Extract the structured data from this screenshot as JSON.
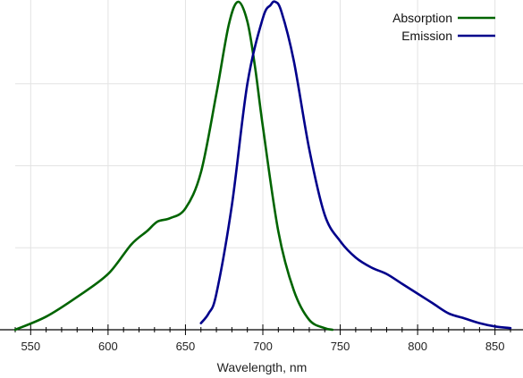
{
  "chart_data": {
    "type": "line",
    "xlabel": "Wavelength, nm",
    "xlim": [
      540,
      860
    ],
    "ylim": [
      0,
      1
    ],
    "x_ticks": [
      550,
      600,
      650,
      700,
      750,
      800,
      850
    ],
    "x_tick_labels": [
      "550",
      "600",
      "650",
      "700",
      "750",
      "800",
      "850"
    ],
    "grid": true,
    "legend_position": "top-right",
    "series": [
      {
        "name": "Absorption",
        "color": "#006400",
        "x": [
          540,
          560,
          580,
          600,
          615,
          625,
          632,
          640,
          650,
          660,
          670,
          678,
          684,
          690,
          695,
          700,
          710,
          720,
          730,
          740,
          745
        ],
        "y": [
          0.0,
          0.04,
          0.1,
          0.17,
          0.26,
          0.3,
          0.33,
          0.34,
          0.37,
          0.48,
          0.72,
          0.93,
          1.0,
          0.94,
          0.8,
          0.62,
          0.3,
          0.12,
          0.03,
          0.005,
          0.0
        ]
      },
      {
        "name": "Emission",
        "color": "#00008B",
        "x": [
          660,
          665,
          670,
          680,
          690,
          700,
          705,
          708,
          712,
          720,
          730,
          740,
          750,
          760,
          770,
          780,
          790,
          800,
          810,
          820,
          830,
          840,
          850,
          860
        ],
        "y": [
          0.02,
          0.05,
          0.11,
          0.38,
          0.75,
          0.95,
          0.99,
          1.0,
          0.97,
          0.82,
          0.55,
          0.35,
          0.27,
          0.22,
          0.19,
          0.17,
          0.14,
          0.11,
          0.08,
          0.05,
          0.035,
          0.02,
          0.01,
          0.005
        ]
      }
    ]
  }
}
